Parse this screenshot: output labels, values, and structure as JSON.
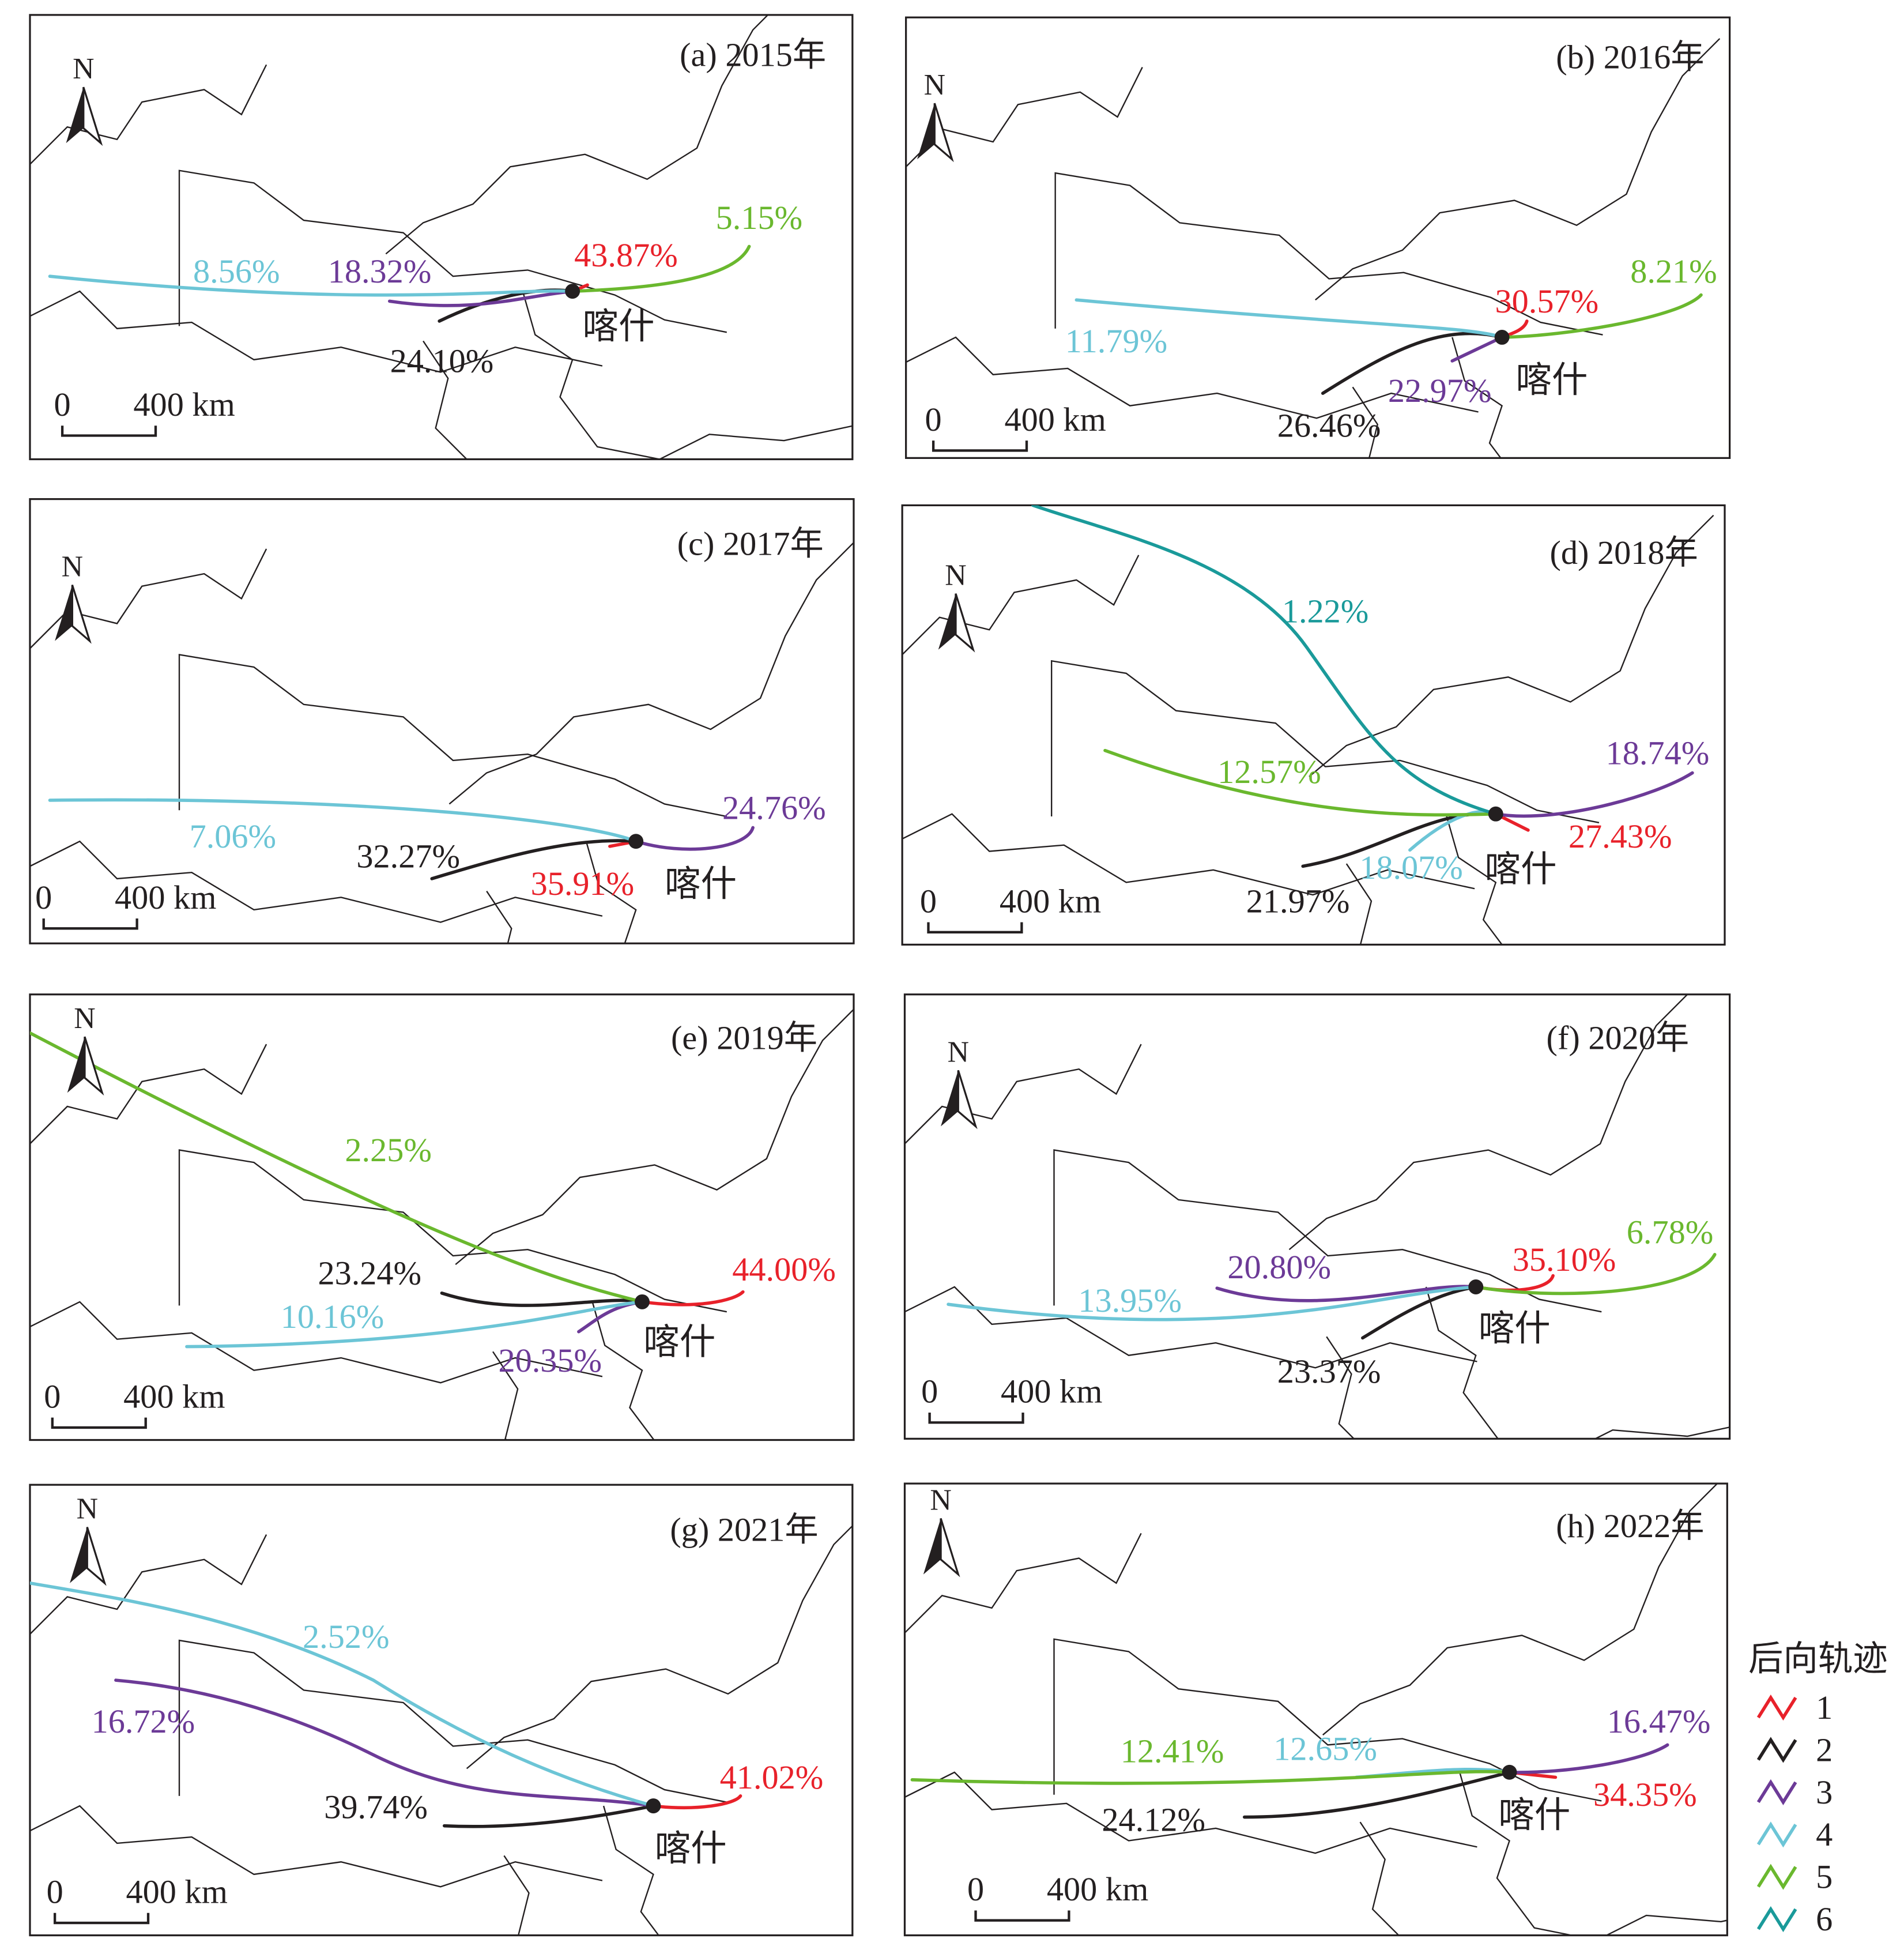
{
  "colors": {
    "1": "#e8212a",
    "2": "#231f20",
    "3": "#6c3a97",
    "4": "#6cc5d6",
    "5": "#6ab82e",
    "6": "#1a9a9a"
  },
  "panels": [
    {
      "title": "(a) 2015年",
      "city": "喀什",
      "north": "N",
      "scale_zero": "0",
      "scale_label": "400 km",
      "trajectories": [
        {
          "id": "1",
          "percent": "43.87%"
        },
        {
          "id": "2",
          "percent": "24.10%"
        },
        {
          "id": "3",
          "percent": "18.32%"
        },
        {
          "id": "4",
          "percent": "8.56%"
        },
        {
          "id": "5",
          "percent": "5.15%"
        }
      ]
    },
    {
      "title": "(b) 2016年",
      "city": "喀什",
      "north": "N",
      "scale_zero": "0",
      "scale_label": "400 km",
      "trajectories": [
        {
          "id": "1",
          "percent": "30.57%"
        },
        {
          "id": "2",
          "percent": "26.46%"
        },
        {
          "id": "3",
          "percent": "22.97%"
        },
        {
          "id": "4",
          "percent": "11.79%"
        },
        {
          "id": "5",
          "percent": "8.21%"
        }
      ]
    },
    {
      "title": "(c) 2017年",
      "city": "喀什",
      "north": "N",
      "scale_zero": "0",
      "scale_label": "400 km",
      "trajectories": [
        {
          "id": "1",
          "percent": "35.91%"
        },
        {
          "id": "2",
          "percent": "32.27%"
        },
        {
          "id": "3",
          "percent": "24.76%"
        },
        {
          "id": "4",
          "percent": "7.06%"
        }
      ]
    },
    {
      "title": "(d) 2018年",
      "city": "喀什",
      "north": "N",
      "scale_zero": "0",
      "scale_label": "400 km",
      "trajectories": [
        {
          "id": "1",
          "percent": "27.43%"
        },
        {
          "id": "2",
          "percent": "21.97%"
        },
        {
          "id": "3",
          "percent": "18.74%"
        },
        {
          "id": "4",
          "percent": "18.07%"
        },
        {
          "id": "5",
          "percent": "12.57%"
        },
        {
          "id": "6",
          "percent": "1.22%"
        }
      ]
    },
    {
      "title": "(e) 2019年",
      "city": "喀什",
      "north": "N",
      "scale_zero": "0",
      "scale_label": "400 km",
      "trajectories": [
        {
          "id": "1",
          "percent": "44.00%"
        },
        {
          "id": "2",
          "percent": "23.24%"
        },
        {
          "id": "3",
          "percent": "20.35%"
        },
        {
          "id": "4",
          "percent": "10.16%"
        },
        {
          "id": "5",
          "percent": "2.25%"
        }
      ]
    },
    {
      "title": "(f) 2020年",
      "city": "喀什",
      "north": "N",
      "scale_zero": "0",
      "scale_label": "400 km",
      "trajectories": [
        {
          "id": "1",
          "percent": "35.10%"
        },
        {
          "id": "2",
          "percent": "23.37%"
        },
        {
          "id": "3",
          "percent": "20.80%"
        },
        {
          "id": "4",
          "percent": "13.95%"
        },
        {
          "id": "5",
          "percent": "6.78%"
        }
      ]
    },
    {
      "title": "(g) 2021年",
      "city": "喀什",
      "north": "N",
      "scale_zero": "0",
      "scale_label": "400 km",
      "trajectories": [
        {
          "id": "1",
          "percent": "41.02%"
        },
        {
          "id": "2",
          "percent": "39.74%"
        },
        {
          "id": "3",
          "percent": "16.72%"
        },
        {
          "id": "4",
          "percent": "2.52%"
        }
      ]
    },
    {
      "title": "(h) 2022年",
      "city": "喀什",
      "north": "N",
      "scale_zero": "0",
      "scale_label": "400 km",
      "trajectories": [
        {
          "id": "1",
          "percent": "34.35%"
        },
        {
          "id": "2",
          "percent": "24.12%"
        },
        {
          "id": "3",
          "percent": "16.47%"
        },
        {
          "id": "4",
          "percent": "12.65%"
        },
        {
          "id": "5",
          "percent": "12.41%"
        }
      ]
    }
  ],
  "legend": {
    "title": "后向轨迹",
    "items": [
      {
        "label": "1",
        "color": "#e8212a"
      },
      {
        "label": "2",
        "color": "#231f20"
      },
      {
        "label": "3",
        "color": "#6c3a97"
      },
      {
        "label": "4",
        "color": "#6cc5d6"
      },
      {
        "label": "5",
        "color": "#6ab82e"
      },
      {
        "label": "6",
        "color": "#1a9a9a"
      }
    ]
  }
}
